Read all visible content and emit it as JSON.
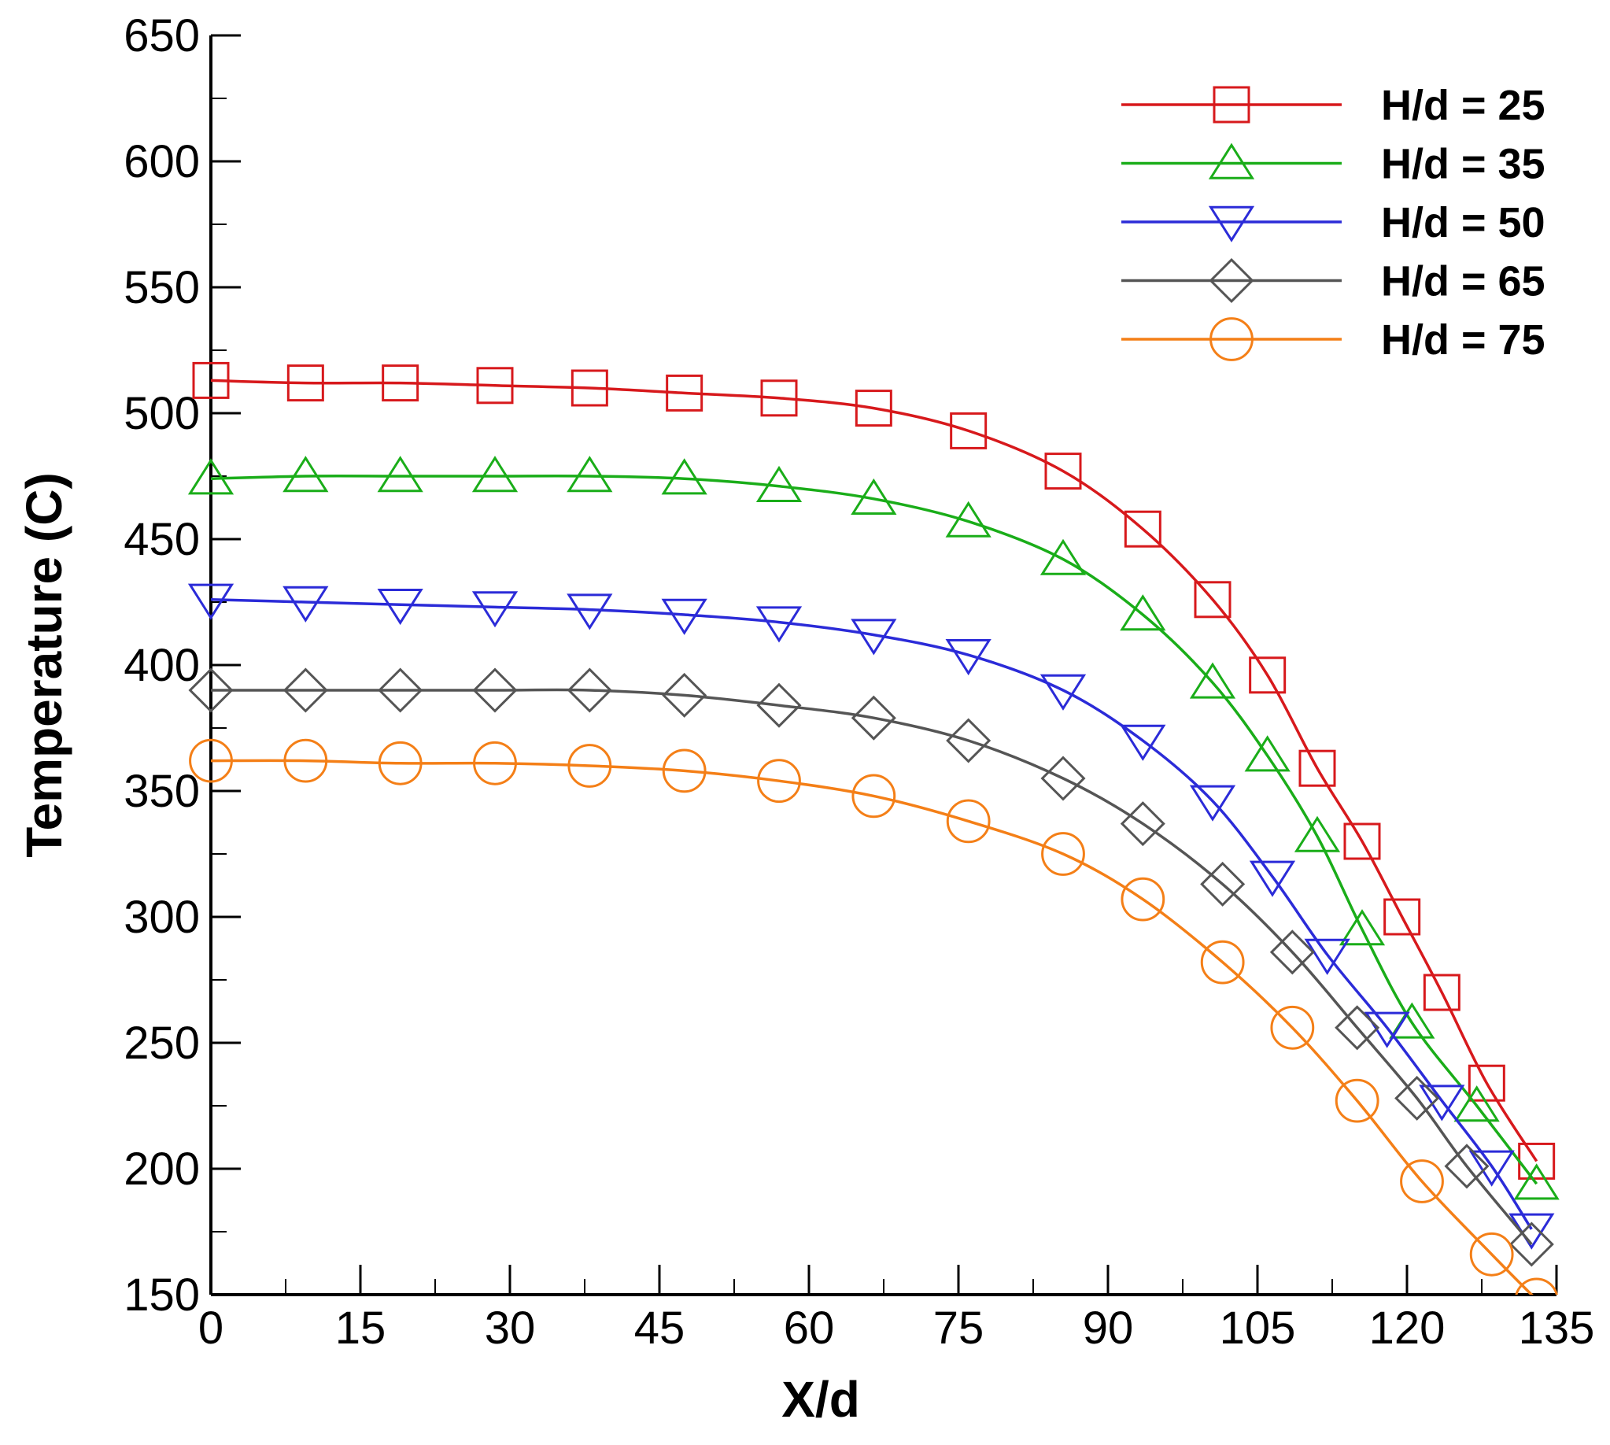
{
  "chart_data": {
    "type": "line",
    "title": "",
    "xlabel": "X/d",
    "ylabel": "Temperature (C)",
    "xlim": [
      0,
      135
    ],
    "ylim": [
      150,
      650
    ],
    "xticks": [
      0,
      15,
      30,
      45,
      60,
      75,
      90,
      105,
      120,
      135
    ],
    "xtick_labels": [
      "0",
      "15",
      "30",
      "45",
      "60",
      "75",
      "90",
      "105",
      "120",
      "135"
    ],
    "yticks": [
      150,
      200,
      250,
      300,
      350,
      400,
      450,
      500,
      550,
      600,
      650
    ],
    "ytick_labels": [
      "150",
      "200",
      "250",
      "300",
      "350",
      "400",
      "450",
      "500",
      "550",
      "600",
      "650"
    ],
    "legend_position": "top-right",
    "grid": false,
    "series": [
      {
        "name": "H/d = 25",
        "color": "#d7191c",
        "marker": "square",
        "x": [
          0,
          9.5,
          19,
          28.5,
          38,
          47.5,
          57,
          66.5,
          76,
          85.5,
          93.5,
          100.5,
          106,
          111,
          115.5,
          119.5,
          123.5,
          128,
          133
        ],
        "y": [
          513,
          512,
          512,
          511,
          510,
          508,
          506,
          502,
          493,
          477,
          454,
          426,
          396,
          359,
          330,
          300,
          270,
          234,
          203
        ]
      },
      {
        "name": "H/d = 35",
        "color": "#1aad19",
        "marker": "triangle-up",
        "x": [
          0,
          9.5,
          19,
          28.5,
          38,
          47.5,
          57,
          66.5,
          76,
          85.5,
          93.5,
          100.5,
          106,
          111,
          115.5,
          120.5,
          127,
          133
        ],
        "y": [
          474,
          475,
          475,
          475,
          475,
          474,
          471,
          466,
          457,
          442,
          420,
          393,
          364,
          332,
          295,
          258,
          225,
          194
        ]
      },
      {
        "name": "H/d = 50",
        "color": "#2b2bd8",
        "marker": "triangle-down",
        "x": [
          0,
          9.5,
          19,
          28.5,
          38,
          47.5,
          57,
          66.5,
          76,
          85.5,
          93.5,
          100.5,
          106.5,
          112,
          118,
          123.5,
          128.5,
          132.5
        ],
        "y": [
          426,
          425,
          424,
          423,
          422,
          420,
          417,
          412,
          404,
          390,
          370,
          346,
          316,
          285,
          256,
          227,
          201,
          176
        ]
      },
      {
        "name": "H/d = 65",
        "color": "#555555",
        "marker": "diamond",
        "x": [
          0,
          9.5,
          19,
          28.5,
          38,
          47.5,
          57,
          66.5,
          76,
          85.5,
          93.5,
          101.5,
          108.5,
          115,
          121,
          126,
          132.5
        ],
        "y": [
          390,
          390,
          390,
          390,
          390,
          388,
          384,
          379,
          370,
          355,
          337,
          313,
          286,
          256,
          228,
          201,
          170
        ]
      },
      {
        "name": "H/d = 75",
        "color": "#f47f17",
        "marker": "circle",
        "x": [
          0,
          9.5,
          19,
          28.5,
          38,
          47.5,
          57,
          66.5,
          76,
          85.5,
          93.5,
          101.5,
          108.5,
          115,
          121.5,
          128.5,
          133
        ],
        "y": [
          362,
          362,
          361,
          361,
          360,
          358,
          354,
          348,
          338,
          325,
          307,
          282,
          256,
          227,
          195,
          166,
          148
        ]
      }
    ]
  }
}
